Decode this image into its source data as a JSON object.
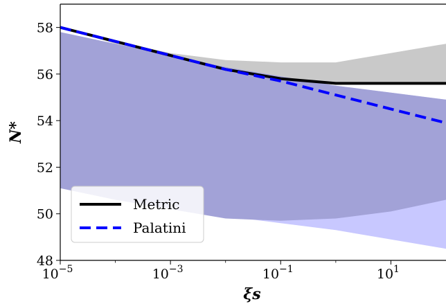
{
  "chart_data": {
    "type": "line",
    "xscale": "log",
    "xlabel": "ξs",
    "ylabel": "N*",
    "xlim": [
      1e-05,
      100
    ],
    "ylim": [
      48,
      59
    ],
    "x_ticks": [
      {
        "value": 1e-05,
        "base": "10",
        "exp": "−5"
      },
      {
        "value": 0.001,
        "base": "10",
        "exp": "−3"
      },
      {
        "value": 0.1,
        "base": "10",
        "exp": "−1"
      },
      {
        "value": 10,
        "base": "10",
        "exp": "1"
      }
    ],
    "y_ticks": [
      {
        "value": 48,
        "label": "48"
      },
      {
        "value": 50,
        "label": "50"
      },
      {
        "value": 52,
        "label": "52"
      },
      {
        "value": 54,
        "label": "54"
      },
      {
        "value": 56,
        "label": "56"
      },
      {
        "value": 58,
        "label": "58"
      }
    ],
    "bands": [
      {
        "color": "#c9c9c9",
        "x": [
          1e-05,
          0.0001,
          0.001,
          0.01,
          0.1,
          1,
          10,
          100
        ],
        "upper": [
          58.0,
          57.4,
          56.9,
          56.6,
          56.5,
          56.5,
          56.9,
          57.3
        ],
        "lower": [
          58.0,
          57.3,
          56.7,
          56.1,
          55.7,
          55.6,
          55.6,
          55.6
        ]
      },
      {
        "color": "#c8c8ff",
        "x": [
          1e-05,
          0.0001,
          0.001,
          0.01,
          0.1,
          1,
          10,
          100
        ],
        "upper": [
          57.8,
          57.3,
          56.8,
          56.3,
          55.9,
          55.5,
          55.2,
          54.9
        ],
        "lower": [
          51.1,
          50.6,
          50.3,
          49.9,
          49.6,
          49.3,
          48.9,
          48.5
        ]
      },
      {
        "color": "#a2a2d7",
        "x": [
          1e-05,
          0.0001,
          0.001,
          0.01,
          0.1,
          1,
          10,
          100
        ],
        "upper": [
          57.8,
          57.3,
          56.8,
          56.3,
          55.9,
          55.5,
          55.2,
          54.9
        ],
        "lower": [
          51.1,
          50.6,
          50.2,
          49.8,
          49.7,
          49.8,
          50.1,
          50.6
        ]
      }
    ],
    "series": [
      {
        "name": "Metric",
        "color": "#000000",
        "dash": "solid",
        "x": [
          1e-05,
          0.0001,
          0.001,
          0.01,
          0.1,
          1,
          10,
          100
        ],
        "y": [
          58.0,
          57.4,
          56.8,
          56.2,
          55.8,
          55.6,
          55.6,
          55.6
        ]
      },
      {
        "name": "Palatini",
        "color": "#0000ff",
        "dash": "dashed",
        "x": [
          1e-05,
          0.0001,
          0.001,
          0.01,
          0.1,
          1,
          10,
          100
        ],
        "y": [
          58.0,
          57.4,
          56.8,
          56.2,
          55.7,
          55.1,
          54.5,
          53.9
        ]
      }
    ],
    "legend": {
      "position": "lower-left",
      "entries": [
        "Metric",
        "Palatini"
      ]
    },
    "grid": false
  }
}
